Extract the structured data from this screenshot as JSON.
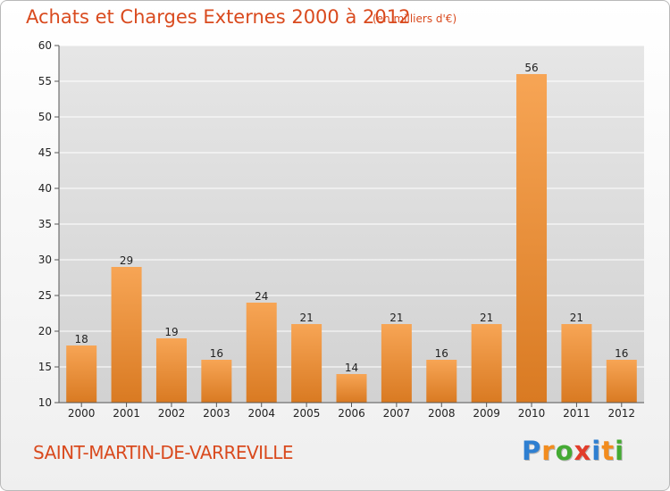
{
  "header": {
    "title": "Achats et Charges Externes 2000 à 2012",
    "subtitle": "(en milliers d'€)"
  },
  "footer": {
    "commune": "SAINT-MARTIN-DE-VARREVILLE",
    "brand": [
      "P",
      "r",
      "o",
      "x",
      "i",
      "t",
      "i"
    ],
    "brand_colors": [
      "#2e7fd1",
      "#f28c1e",
      "#44aa33",
      "#e23d2b",
      "#2e7fd1",
      "#f28c1e",
      "#44aa33"
    ]
  },
  "chart_data": {
    "type": "bar",
    "categories": [
      "2000",
      "2001",
      "2002",
      "2003",
      "2004",
      "2005",
      "2006",
      "2007",
      "2008",
      "2009",
      "2010",
      "2011",
      "2012"
    ],
    "values": [
      18,
      29,
      19,
      16,
      24,
      21,
      14,
      21,
      16,
      21,
      56,
      21,
      16
    ],
    "data_labels": [
      "18",
      "29",
      "19",
      "16",
      "24",
      "21",
      "14",
      "21",
      "16",
      "21",
      "56",
      "21",
      "16"
    ],
    "ylim": [
      10,
      60
    ],
    "yticks": [
      10,
      15,
      20,
      25,
      30,
      35,
      40,
      45,
      50,
      55,
      60
    ],
    "grid": true,
    "xlabel": "",
    "ylabel": "",
    "bar_color_top": "#f7a555",
    "bar_color_bottom": "#d97a22",
    "plot_background": "#dcdcdc"
  }
}
